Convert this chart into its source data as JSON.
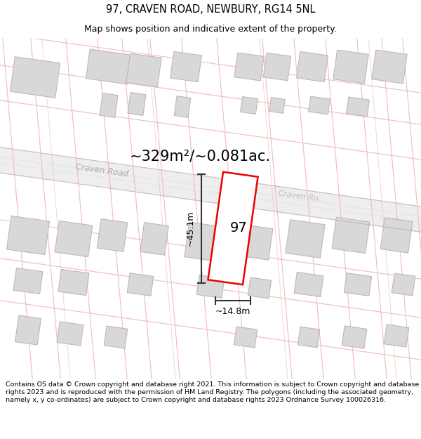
{
  "title_line1": "97, CRAVEN ROAD, NEWBURY, RG14 5NL",
  "title_line2": "Map shows position and indicative extent of the property.",
  "footer_text": "Contains OS data © Crown copyright and database right 2021. This information is subject to Crown copyright and database rights 2023 and is reproduced with the permission of HM Land Registry. The polygons (including the associated geometry, namely x, y co-ordinates) are subject to Crown copyright and database rights 2023 Ordnance Survey 100026316.",
  "area_label": "~329m²/~0.081ac.",
  "number_label": "97",
  "dim_height": "~45.1m",
  "dim_width": "~14.8m",
  "road_label_1": "Craven Road",
  "road_label_2": "Craven Ro...",
  "bg_color": "#ffffff",
  "map_bg": "#ffffff",
  "line_color": "#f0b8b8",
  "building_fill": "#d8d8d8",
  "building_stroke": "#c0b0b0",
  "road_band_color": "#ede8e8",
  "road_line_color": "#ccb0b0",
  "highlight_color": "#ee0000",
  "title_fontsize": 10.5,
  "subtitle_fontsize": 9.0,
  "footer_fontsize": 6.8
}
